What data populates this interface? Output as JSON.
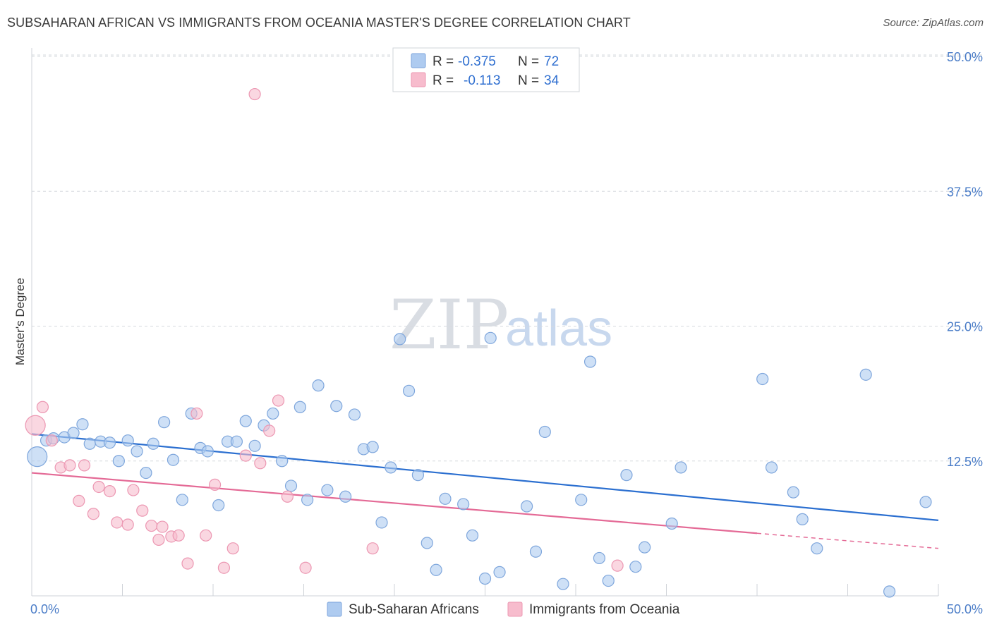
{
  "header": {
    "title": "SUBSAHARAN AFRICAN VS IMMIGRANTS FROM OCEANIA MASTER'S DEGREE CORRELATION CHART",
    "source": "Source: ZipAtlas.com"
  },
  "watermark": {
    "zip": "ZIP",
    "atlas": "atlas"
  },
  "legend_top": {
    "rows": [
      {
        "r_label": "R =",
        "r_value": "-0.375",
        "n_label": "N =",
        "n_value": "72"
      },
      {
        "r_label": "R =",
        "r_value": "-0.113",
        "n_label": "N =",
        "n_value": "34"
      }
    ]
  },
  "colors": {
    "blue_fill": "#aecbf0",
    "blue_stroke": "#7ea6dc",
    "blue_line": "#2b6fd0",
    "pink_fill": "#f7bccd",
    "pink_stroke": "#ec97b2",
    "pink_line": "#e46a96",
    "grid": "#d6d9de",
    "tick_text": "#4a7cc7"
  },
  "chart_data": {
    "type": "scatter",
    "title": "SUBSAHARAN AFRICAN VS IMMIGRANTS FROM OCEANIA MASTER'S DEGREE CORRELATION CHART",
    "xlabel": "",
    "ylabel": "Master's Degree",
    "xlim": [
      0,
      50
    ],
    "ylim": [
      0,
      50
    ],
    "x_tick_labels": [
      "0.0%",
      "50.0%"
    ],
    "y_ticks": [
      12.5,
      25.0,
      37.5,
      50.0
    ],
    "y_tick_labels": [
      "12.5%",
      "25.0%",
      "37.5%",
      "50.0%"
    ],
    "grid": true,
    "legend_position": "bottom",
    "series": [
      {
        "name": "Sub-Saharan Africans",
        "color": "#aecbf0",
        "r": -0.375,
        "n": 72,
        "trend": {
          "x": [
            0,
            50
          ],
          "y": [
            15.0,
            7.0
          ]
        },
        "points": [
          [
            0.3,
            12.9
          ],
          [
            0.8,
            14.4
          ],
          [
            1.2,
            14.6
          ],
          [
            1.8,
            14.7
          ],
          [
            2.3,
            15.1
          ],
          [
            2.8,
            15.9
          ],
          [
            3.2,
            14.1
          ],
          [
            3.8,
            14.3
          ],
          [
            4.3,
            14.2
          ],
          [
            4.8,
            12.5
          ],
          [
            5.3,
            14.4
          ],
          [
            5.8,
            13.4
          ],
          [
            6.3,
            11.4
          ],
          [
            6.7,
            14.1
          ],
          [
            7.3,
            16.1
          ],
          [
            7.8,
            12.6
          ],
          [
            8.3,
            8.9
          ],
          [
            8.8,
            16.9
          ],
          [
            9.3,
            13.7
          ],
          [
            9.7,
            13.4
          ],
          [
            10.3,
            8.4
          ],
          [
            10.8,
            14.3
          ],
          [
            11.3,
            14.3
          ],
          [
            11.8,
            16.2
          ],
          [
            12.3,
            13.9
          ],
          [
            12.8,
            15.8
          ],
          [
            13.3,
            16.9
          ],
          [
            13.8,
            12.5
          ],
          [
            14.3,
            10.2
          ],
          [
            14.8,
            17.5
          ],
          [
            15.2,
            8.9
          ],
          [
            15.8,
            19.5
          ],
          [
            16.3,
            9.8
          ],
          [
            16.8,
            17.6
          ],
          [
            17.3,
            9.2
          ],
          [
            17.8,
            16.8
          ],
          [
            18.3,
            13.6
          ],
          [
            18.8,
            13.8
          ],
          [
            19.3,
            6.8
          ],
          [
            19.8,
            11.9
          ],
          [
            20.3,
            23.8
          ],
          [
            20.8,
            19.0
          ],
          [
            21.3,
            11.2
          ],
          [
            21.8,
            4.9
          ],
          [
            22.3,
            2.4
          ],
          [
            22.8,
            9.0
          ],
          [
            23.8,
            8.5
          ],
          [
            24.3,
            5.6
          ],
          [
            25.0,
            1.6
          ],
          [
            25.3,
            23.9
          ],
          [
            25.8,
            2.2
          ],
          [
            27.3,
            8.3
          ],
          [
            27.8,
            4.1
          ],
          [
            28.3,
            15.2
          ],
          [
            29.3,
            1.1
          ],
          [
            30.3,
            8.9
          ],
          [
            30.8,
            21.7
          ],
          [
            31.3,
            3.5
          ],
          [
            31.8,
            1.4
          ],
          [
            32.8,
            11.2
          ],
          [
            33.3,
            2.7
          ],
          [
            33.8,
            4.5
          ],
          [
            35.3,
            6.7
          ],
          [
            35.8,
            11.9
          ],
          [
            40.3,
            20.1
          ],
          [
            40.8,
            11.9
          ],
          [
            42.0,
            9.6
          ],
          [
            42.5,
            7.1
          ],
          [
            43.3,
            4.4
          ],
          [
            46.0,
            20.5
          ],
          [
            47.3,
            0.4
          ],
          [
            49.3,
            8.7
          ]
        ]
      },
      {
        "name": "Immigrants from Oceania",
        "color": "#f7bccd",
        "r": -0.113,
        "n": 34,
        "trend": {
          "x": [
            0,
            40
          ],
          "y": [
            11.4,
            5.8
          ]
        },
        "trend_extension": {
          "x": [
            40,
            50
          ],
          "y": [
            5.8,
            4.4
          ]
        },
        "points": [
          [
            0.2,
            15.8
          ],
          [
            0.6,
            17.5
          ],
          [
            1.1,
            14.4
          ],
          [
            1.6,
            11.9
          ],
          [
            2.1,
            12.1
          ],
          [
            2.6,
            8.8
          ],
          [
            2.9,
            12.1
          ],
          [
            3.4,
            7.6
          ],
          [
            3.7,
            10.1
          ],
          [
            4.3,
            9.7
          ],
          [
            4.7,
            6.8
          ],
          [
            5.3,
            6.6
          ],
          [
            5.6,
            9.8
          ],
          [
            6.1,
            7.9
          ],
          [
            6.6,
            6.5
          ],
          [
            7.0,
            5.2
          ],
          [
            7.2,
            6.4
          ],
          [
            7.7,
            5.5
          ],
          [
            8.1,
            5.6
          ],
          [
            8.6,
            3.0
          ],
          [
            9.1,
            16.9
          ],
          [
            9.6,
            5.6
          ],
          [
            10.1,
            10.3
          ],
          [
            10.6,
            2.6
          ],
          [
            11.1,
            4.4
          ],
          [
            11.8,
            13.0
          ],
          [
            12.3,
            46.5
          ],
          [
            12.6,
            12.3
          ],
          [
            13.1,
            15.3
          ],
          [
            13.6,
            18.1
          ],
          [
            14.1,
            9.2
          ],
          [
            15.1,
            2.6
          ],
          [
            18.8,
            4.4
          ],
          [
            32.3,
            2.8
          ]
        ]
      }
    ]
  },
  "bottom_legend": [
    {
      "label": "Sub-Saharan Africans"
    },
    {
      "label": "Immigrants from Oceania"
    }
  ]
}
